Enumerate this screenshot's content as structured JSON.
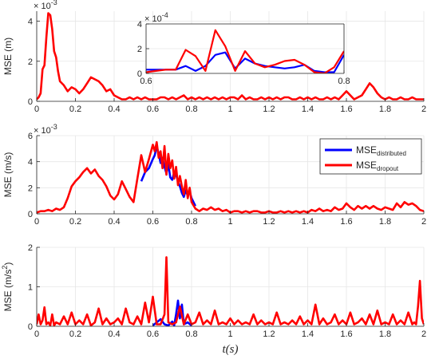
{
  "colors": {
    "distributed": "#0000ff",
    "dropout": "#ff0000",
    "grid": "#e6e6e6",
    "axis": "#262626"
  },
  "chart_data": [
    {
      "id": "pos",
      "type": "line",
      "ylabel": "MSE (m)",
      "xlabel": "",
      "exponent_base": "× 10",
      "exponent_power": "-3",
      "xlim": [
        0,
        2
      ],
      "ylim": [
        0,
        0.0045
      ],
      "scale": 1000,
      "grid": true,
      "xticks": [
        0,
        0.2,
        0.4,
        0.6,
        0.8,
        1,
        1.2,
        1.4,
        1.6,
        1.8,
        2
      ],
      "xtick_labels": [
        "0",
        "0.2",
        "0.4",
        "0.6",
        "0.8",
        "1",
        "1.2",
        "1.4",
        "1.6",
        "1.8",
        "2"
      ],
      "yticks": [
        0,
        0.002,
        0.004
      ],
      "ytick_labels": [
        "0",
        "2",
        "4"
      ],
      "series": [
        {
          "key": "dropout",
          "x": [
            0,
            0.01,
            0.02,
            0.03,
            0.04,
            0.05,
            0.06,
            0.07,
            0.08,
            0.09,
            0.1,
            0.11,
            0.12,
            0.14,
            0.16,
            0.18,
            0.2,
            0.22,
            0.24,
            0.26,
            0.28,
            0.3,
            0.32,
            0.34,
            0.36,
            0.38,
            0.4,
            0.42,
            0.44,
            0.46,
            0.48,
            0.5,
            0.52,
            0.54,
            0.56,
            0.58,
            0.6,
            0.62,
            0.64,
            0.66,
            0.68,
            0.7,
            0.72,
            0.74,
            0.76,
            0.78,
            0.8,
            0.82,
            0.84,
            0.86,
            0.88,
            0.9,
            0.92,
            0.94,
            0.96,
            0.98,
            1,
            1.02,
            1.04,
            1.06,
            1.08,
            1.1,
            1.12,
            1.14,
            1.16,
            1.18,
            1.2,
            1.22,
            1.24,
            1.26,
            1.28,
            1.3,
            1.32,
            1.34,
            1.36,
            1.38,
            1.4,
            1.42,
            1.44,
            1.46,
            1.48,
            1.5,
            1.52,
            1.54,
            1.56,
            1.58,
            1.6,
            1.62,
            1.64,
            1.66,
            1.68,
            1.7,
            1.72,
            1.74,
            1.76,
            1.78,
            1.8,
            1.82,
            1.84,
            1.86,
            1.88,
            1.9,
            1.92,
            1.94,
            1.96,
            1.98,
            2
          ],
          "y": [
            0.0001,
            0.0002,
            0.0004,
            0.0016,
            0.0018,
            0.0032,
            0.0044,
            0.0043,
            0.0036,
            0.0025,
            0.0022,
            0.0015,
            0.001,
            0.0008,
            0.0005,
            0.0007,
            0.0006,
            0.0004,
            0.0006,
            0.0009,
            0.0012,
            0.0011,
            0.001,
            0.0008,
            0.0005,
            0.0006,
            0.0003,
            0.0002,
            0.0001,
            0.0001,
            0.0002,
            0.0001,
            0.0002,
            0.0001,
            0.0002,
            0.0001,
            0.0001,
            0.0001,
            0.0002,
            0.0002,
            0.0001,
            0.0002,
            0.0001,
            0.0002,
            0.0003,
            0.0001,
            0.0002,
            0.0001,
            0.0002,
            0.0001,
            0.0002,
            0.0001,
            0.0002,
            0.0001,
            0.0002,
            0.0001,
            0.0002,
            0.0002,
            0.0001,
            0.0003,
            0.0001,
            0.0002,
            0.0001,
            0.0001,
            0.0002,
            0.0001,
            0.0002,
            0.0001,
            0.0002,
            0.0001,
            0.0002,
            0.0002,
            0.0001,
            0.0001,
            0.0002,
            0.0001,
            0.0002,
            0.0001,
            0.0002,
            0.0001,
            0.0001,
            0.0002,
            0.0001,
            0.0002,
            0.0001,
            0.0003,
            0.0005,
            0.0003,
            0.0001,
            0.0002,
            0.0003,
            0.0006,
            0.0009,
            0.0007,
            0.0004,
            0.0002,
            0.0001,
            0.0002,
            0.0001,
            0.0001,
            0.0002,
            0.0001,
            0.0001,
            0.0002,
            0.0001,
            0.0001,
            0.0001
          ]
        }
      ]
    },
    {
      "id": "pos-inset",
      "type": "line",
      "exponent_base": "× 10",
      "exponent_power": "-4",
      "xlim": [
        0.6,
        0.8
      ],
      "ylim": [
        0,
        0.0004
      ],
      "scale": 10000,
      "grid": true,
      "xticks": [
        0.6,
        0.8
      ],
      "xtick_labels": [
        "0.6",
        "0.8"
      ],
      "yticks": [
        0,
        0.0002,
        0.0004
      ],
      "ytick_labels": [
        "0",
        "2",
        "4"
      ],
      "series": [
        {
          "key": "distributed",
          "x": [
            0.6,
            0.61,
            0.62,
            0.63,
            0.64,
            0.65,
            0.66,
            0.67,
            0.68,
            0.69,
            0.7,
            0.71,
            0.72,
            0.73,
            0.74,
            0.75,
            0.76,
            0.77,
            0.78,
            0.79,
            0.8
          ],
          "y": [
            3e-05,
            3e-05,
            3e-05,
            3e-05,
            6e-05,
            2e-05,
            6e-05,
            0.00015,
            0.00017,
            4e-05,
            0.00012,
            8e-05,
            6e-05,
            5e-05,
            4e-05,
            5e-05,
            7e-05,
            2e-05,
            1e-05,
            1e-05,
            0.00015
          ]
        },
        {
          "key": "dropout",
          "x": [
            0.6,
            0.61,
            0.62,
            0.63,
            0.64,
            0.65,
            0.66,
            0.67,
            0.68,
            0.69,
            0.7,
            0.71,
            0.72,
            0.73,
            0.74,
            0.75,
            0.76,
            0.77,
            0.78,
            0.79,
            0.8
          ],
          "y": [
            1e-05,
            2e-05,
            3e-05,
            3e-05,
            0.00019,
            0.00014,
            2e-05,
            0.00035,
            0.00022,
            2e-05,
            0.00018,
            8e-05,
            5e-05,
            7e-05,
            0.0001,
            0.00011,
            7e-05,
            1e-05,
            0.0,
            5e-05,
            0.00018
          ]
        }
      ]
    },
    {
      "id": "vel",
      "type": "line",
      "ylabel": "MSE (m/s)",
      "xlabel": "",
      "exponent_base": "× 10",
      "exponent_power": "-3",
      "xlim": [
        0,
        2
      ],
      "ylim": [
        0,
        0.006
      ],
      "scale": 1000,
      "grid": true,
      "xticks": [
        0,
        0.2,
        0.4,
        0.6,
        0.8,
        1,
        1.2,
        1.4,
        1.6,
        1.8,
        2
      ],
      "xtick_labels": [
        "0",
        "0.2",
        "0.4",
        "0.6",
        "0.8",
        "1",
        "1.2",
        "1.4",
        "1.6",
        "1.8",
        "2"
      ],
      "yticks": [
        0,
        0.002,
        0.004,
        0.006
      ],
      "ytick_labels": [
        "0",
        "2",
        "4",
        "6"
      ],
      "legend": {
        "placement": "top-right",
        "entries": [
          {
            "key": "distributed",
            "label": "MSE",
            "sub": "distributed"
          },
          {
            "key": "dropout",
            "label": "MSE",
            "sub": "dropout"
          }
        ]
      },
      "series": [
        {
          "key": "distributed",
          "x": [
            0.54,
            0.56,
            0.58,
            0.6,
            0.61,
            0.62,
            0.63,
            0.64,
            0.65,
            0.66,
            0.67,
            0.68,
            0.69,
            0.7,
            0.71,
            0.72,
            0.73,
            0.74,
            0.75,
            0.76,
            0.77,
            0.78,
            0.79,
            0.8,
            0.82
          ],
          "y": [
            0.0025,
            0.0032,
            0.0035,
            0.0042,
            0.0045,
            0.0052,
            0.0046,
            0.0039,
            0.0043,
            0.0036,
            0.0031,
            0.0038,
            0.0028,
            0.0026,
            0.0032,
            0.003,
            0.0025,
            0.0021,
            0.0016,
            0.0013,
            0.0018,
            0.0014,
            0.0017,
            0.0012,
            0.0006
          ]
        },
        {
          "key": "dropout",
          "x": [
            0,
            0.02,
            0.04,
            0.06,
            0.08,
            0.1,
            0.12,
            0.14,
            0.16,
            0.18,
            0.2,
            0.22,
            0.24,
            0.26,
            0.28,
            0.3,
            0.32,
            0.34,
            0.36,
            0.38,
            0.4,
            0.42,
            0.44,
            0.46,
            0.48,
            0.5,
            0.52,
            0.54,
            0.56,
            0.58,
            0.6,
            0.61,
            0.62,
            0.63,
            0.64,
            0.65,
            0.66,
            0.67,
            0.68,
            0.69,
            0.7,
            0.71,
            0.72,
            0.73,
            0.74,
            0.75,
            0.76,
            0.77,
            0.78,
            0.79,
            0.8,
            0.82,
            0.84,
            0.86,
            0.88,
            0.9,
            0.92,
            0.94,
            0.96,
            0.98,
            1,
            1.02,
            1.04,
            1.06,
            1.08,
            1.1,
            1.12,
            1.14,
            1.16,
            1.18,
            1.2,
            1.22,
            1.24,
            1.26,
            1.28,
            1.3,
            1.32,
            1.34,
            1.36,
            1.38,
            1.4,
            1.42,
            1.44,
            1.46,
            1.48,
            1.5,
            1.52,
            1.54,
            1.56,
            1.58,
            1.6,
            1.62,
            1.64,
            1.66,
            1.68,
            1.7,
            1.72,
            1.74,
            1.76,
            1.78,
            1.8,
            1.82,
            1.84,
            1.86,
            1.88,
            1.9,
            1.92,
            1.94,
            1.96,
            1.98,
            2
          ],
          "y": [
            0.0001,
            0.0002,
            0.0002,
            0.0003,
            0.0002,
            0.0004,
            0.0003,
            0.0005,
            0.0012,
            0.0021,
            0.0025,
            0.0028,
            0.0032,
            0.0035,
            0.0031,
            0.0034,
            0.0029,
            0.0026,
            0.0021,
            0.0014,
            0.0011,
            0.0015,
            0.0025,
            0.0019,
            0.0013,
            0.0009,
            0.0027,
            0.0045,
            0.0032,
            0.0042,
            0.0053,
            0.0048,
            0.0055,
            0.0043,
            0.0048,
            0.0035,
            0.0052,
            0.003,
            0.0046,
            0.0035,
            0.0041,
            0.0027,
            0.0036,
            0.0022,
            0.0029,
            0.0021,
            0.0015,
            0.0026,
            0.0012,
            0.002,
            0.0009,
            0.0004,
            0.0002,
            0.0004,
            0.0003,
            0.0005,
            0.0003,
            0.0004,
            0.0002,
            0.0003,
            0.0001,
            0.0002,
            0.0002,
            0.0001,
            0.0002,
            0.0001,
            0.0002,
            0.0002,
            0.0001,
            0.0001,
            0.0002,
            0.0001,
            0.0001,
            0.0002,
            0.0001,
            0.0002,
            0.0001,
            0.0002,
            0.0001,
            0.0002,
            0.0001,
            0.0003,
            0.0002,
            0.0004,
            0.0002,
            0.0003,
            0.0002,
            0.0005,
            0.0003,
            0.0004,
            0.0008,
            0.0005,
            0.0003,
            0.0006,
            0.0004,
            0.0006,
            0.0004,
            0.0006,
            0.0004,
            0.0003,
            0.0005,
            0.0004,
            0.0003,
            0.0008,
            0.0005,
            0.0009,
            0.0007,
            0.0008,
            0.0006,
            0.0003,
            0.0002
          ]
        }
      ]
    },
    {
      "id": "acc",
      "type": "line",
      "ylabel": "MSE (m/s",
      "ylabel_sup": "2",
      "ylabel_end": ")",
      "xlabel": "t(s)",
      "xlim": [
        0,
        2
      ],
      "ylim": [
        0,
        2
      ],
      "scale": 1,
      "grid": true,
      "xticks": [
        0,
        0.2,
        0.4,
        0.6,
        0.8,
        1,
        1.2,
        1.4,
        1.6,
        1.8,
        2
      ],
      "xtick_labels": [
        "0",
        "0.2",
        "0.4",
        "0.6",
        "0.8",
        "1",
        "1.2",
        "1.4",
        "1.6",
        "1.8",
        "2"
      ],
      "yticks": [
        0,
        1,
        2
      ],
      "ytick_labels": [
        "0",
        "1",
        "2"
      ],
      "series": [
        {
          "key": "distributed",
          "x": [
            0.6,
            0.62,
            0.64,
            0.66,
            0.68,
            0.7,
            0.71,
            0.72,
            0.73,
            0.74,
            0.75,
            0.76,
            0.78,
            0.8
          ],
          "y": [
            0.02,
            0.1,
            0.18,
            0.05,
            0.02,
            0.12,
            0.02,
            0.3,
            0.65,
            0.2,
            0.55,
            0.05,
            0.1,
            0.02
          ]
        },
        {
          "key": "dropout",
          "x": [
            0,
            0.01,
            0.02,
            0.03,
            0.04,
            0.05,
            0.06,
            0.07,
            0.08,
            0.09,
            0.1,
            0.12,
            0.14,
            0.16,
            0.18,
            0.2,
            0.22,
            0.24,
            0.26,
            0.28,
            0.3,
            0.32,
            0.34,
            0.36,
            0.38,
            0.4,
            0.42,
            0.44,
            0.46,
            0.48,
            0.5,
            0.52,
            0.54,
            0.56,
            0.58,
            0.6,
            0.62,
            0.64,
            0.66,
            0.67,
            0.68,
            0.7,
            0.72,
            0.74,
            0.76,
            0.78,
            0.8,
            0.82,
            0.84,
            0.86,
            0.88,
            0.9,
            0.92,
            0.94,
            0.96,
            0.98,
            1,
            1.02,
            1.04,
            1.06,
            1.08,
            1.1,
            1.12,
            1.14,
            1.16,
            1.18,
            1.2,
            1.22,
            1.24,
            1.26,
            1.28,
            1.3,
            1.32,
            1.34,
            1.36,
            1.38,
            1.4,
            1.42,
            1.44,
            1.46,
            1.48,
            1.5,
            1.52,
            1.54,
            1.56,
            1.58,
            1.6,
            1.62,
            1.64,
            1.66,
            1.68,
            1.7,
            1.72,
            1.74,
            1.76,
            1.78,
            1.8,
            1.82,
            1.84,
            1.86,
            1.88,
            1.9,
            1.92,
            1.94,
            1.95,
            1.96,
            1.97,
            1.98,
            1.99,
            2
          ],
          "y": [
            0.05,
            0.3,
            0.05,
            0.15,
            0.48,
            0.05,
            0.1,
            0.02,
            0.3,
            0.02,
            0.1,
            0.05,
            0.25,
            0.05,
            0.35,
            0.05,
            0.15,
            0.05,
            0.3,
            0.02,
            0.1,
            0.45,
            0.05,
            0.2,
            0.05,
            0.1,
            0.2,
            0.05,
            0.45,
            0.1,
            0.05,
            0.25,
            0.05,
            0.6,
            0.1,
            0.75,
            0.05,
            0.05,
            0.3,
            1.75,
            0.1,
            0.05,
            0.1,
            0.5,
            0.05,
            0.3,
            0.05,
            0.1,
            0.35,
            0.05,
            0.15,
            0.05,
            0.4,
            0.05,
            0.1,
            0.05,
            0.2,
            0.05,
            0.15,
            0.05,
            0.1,
            0.05,
            0.3,
            0.05,
            0.15,
            0.05,
            0.1,
            0.05,
            0.35,
            0.05,
            0.1,
            0.05,
            0.15,
            0.05,
            0.25,
            0.05,
            0.15,
            0.05,
            0.55,
            0.05,
            0.2,
            0.05,
            0.1,
            0.3,
            0.05,
            0.15,
            0.05,
            0.35,
            0.05,
            0.1,
            0.2,
            0.05,
            0.3,
            0.05,
            0.4,
            0.05,
            0.1,
            0.05,
            0.3,
            0.05,
            0.15,
            0.05,
            0.35,
            0.05,
            0.1,
            0.05,
            0.5,
            1.15,
            0.2,
            0.05
          ]
        }
      ]
    }
  ]
}
